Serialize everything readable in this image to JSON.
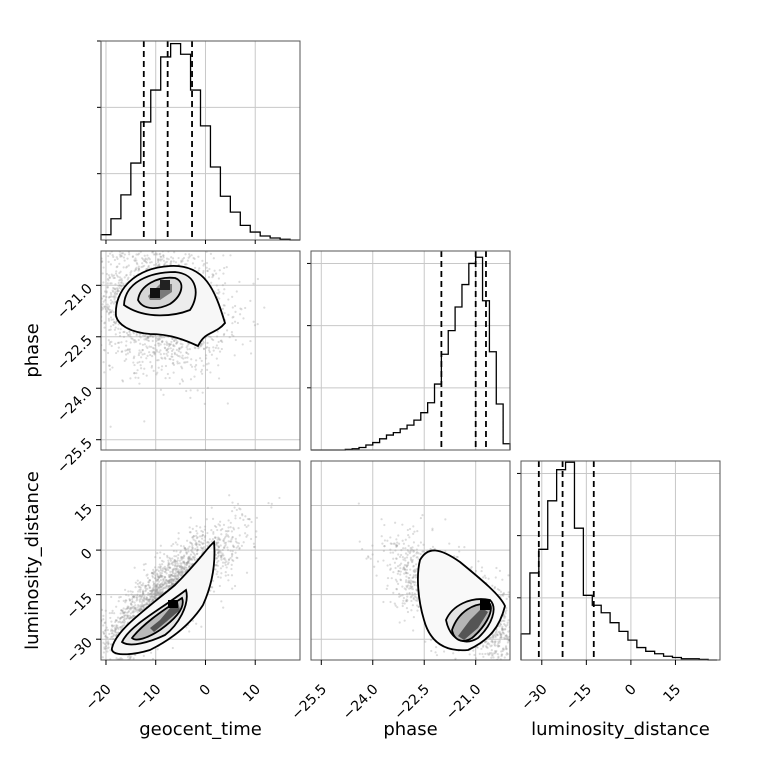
{
  "chart_data": {
    "type": "corner",
    "parameters": [
      "geocent_time",
      "phase",
      "luminosity_distance"
    ],
    "ranges": {
      "geocent_time": [
        -21,
        19
      ],
      "phase": [
        -25.8,
        -20.0
      ],
      "luminosity_distance": [
        -37,
        30
      ]
    },
    "grid": true,
    "marginals": {
      "geocent_time": {
        "bins": [
          -21,
          -19,
          -17,
          -15,
          -13,
          -11,
          -9,
          -7,
          -5,
          -3,
          -1,
          1,
          3,
          5,
          7,
          9,
          11,
          13,
          15,
          17,
          19
        ],
        "heights": [
          0.04,
          0.16,
          0.34,
          0.58,
          0.89,
          1.13,
          1.38,
          1.48,
          1.4,
          1.13,
          0.86,
          0.55,
          0.33,
          0.21,
          0.11,
          0.06,
          0.03,
          0.015,
          0.005,
          0.0
        ],
        "quantiles": [
          -12.4,
          -7.6,
          -2.7
        ],
        "ylim": [
          0,
          1.5
        ]
      },
      "phase": {
        "bins": [
          -25.8,
          -25.6,
          -25.4,
          -25.2,
          -25.0,
          -24.8,
          -24.6,
          -24.4,
          -24.2,
          -24.0,
          -23.8,
          -23.6,
          -23.4,
          -23.2,
          -23.0,
          -22.8,
          -22.6,
          -22.4,
          -22.2,
          -22.0,
          -21.8,
          -21.6,
          -21.4,
          -21.2,
          -21.0,
          -20.8,
          -20.6,
          -20.4,
          -20.2,
          -20.0
        ],
        "heights": [
          0.0,
          0.0,
          0.0,
          0.0,
          0.0,
          0.005,
          0.01,
          0.02,
          0.04,
          0.06,
          0.09,
          0.12,
          0.14,
          0.17,
          0.2,
          0.24,
          0.3,
          0.38,
          0.53,
          0.77,
          0.96,
          1.15,
          1.33,
          1.5,
          1.55,
          1.2,
          0.79,
          0.37,
          0.05
        ],
        "quantiles": [
          -22.0,
          -21.0,
          -20.7
        ],
        "ylim": [
          0,
          1.6
        ]
      },
      "luminosity_distance": {
        "bins": [
          -37,
          -34,
          -31,
          -28,
          -25,
          -22,
          -19,
          -16,
          -13,
          -10,
          -7,
          -4,
          -1,
          2,
          5,
          8,
          11,
          14,
          17,
          20,
          23,
          26,
          29
        ],
        "heights": [
          0.21,
          0.7,
          0.89,
          1.28,
          1.53,
          1.59,
          1.06,
          0.52,
          0.44,
          0.38,
          0.3,
          0.23,
          0.16,
          0.1,
          0.07,
          0.05,
          0.03,
          0.02,
          0.01,
          0.01,
          0.005,
          0.0
        ],
        "quantiles": [
          -31.0,
          -23.0,
          -12.5
        ],
        "ylim": [
          0,
          1.6
        ]
      }
    },
    "tick_labels": {
      "geocent_time": [
        "−20",
        "−10",
        "0",
        "10"
      ],
      "phase": [
        "−25.5",
        "−24.0",
        "−22.5",
        "−21.0"
      ],
      "luminosity_distance": [
        "−30",
        "−15",
        "0",
        "15"
      ]
    },
    "tick_values": {
      "geocent_time": [
        -20,
        -10,
        0,
        10
      ],
      "phase": [
        -25.5,
        -24.0,
        -22.5,
        -21.0
      ],
      "luminosity_distance": [
        -30,
        -15,
        0,
        15
      ]
    }
  }
}
